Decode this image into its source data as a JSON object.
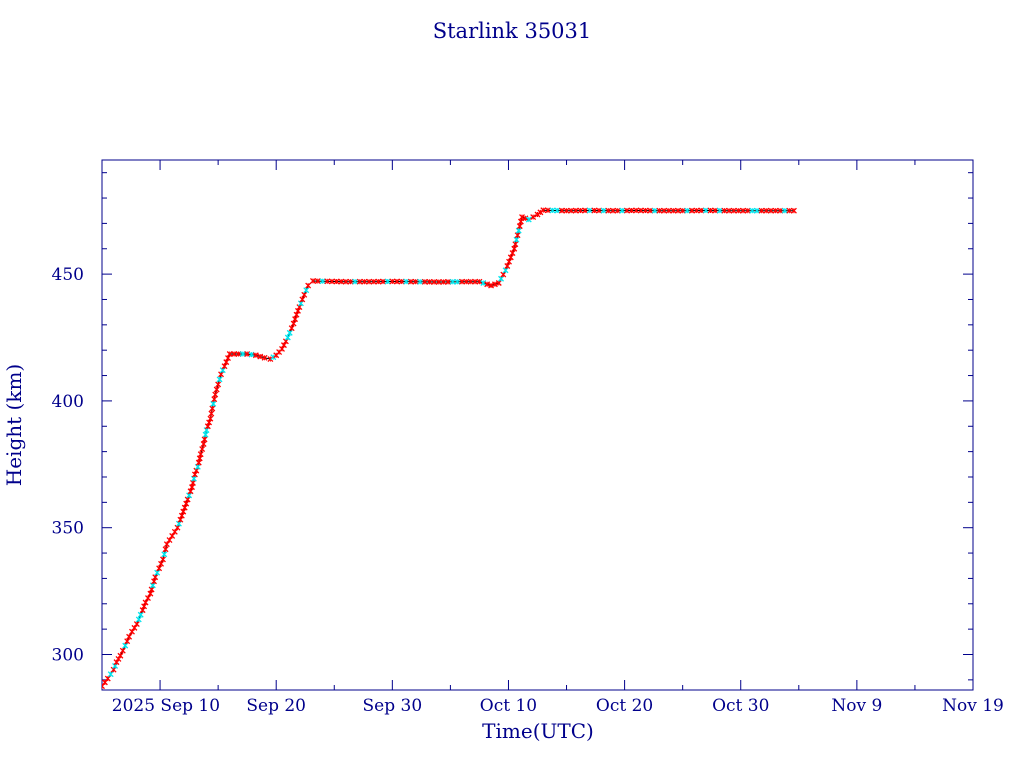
{
  "chart_data": {
    "type": "line",
    "title": "Starlink 35031",
    "xlabel": "Time(UTC)",
    "ylabel": "Height (km)",
    "x_axis": "date",
    "xlim": [
      "2025-09-05T00:00",
      "2025-11-19T00:00"
    ],
    "ylim": [
      286,
      495
    ],
    "x_ticks": [
      {
        "date": "2025-09-10",
        "label": "2025 Sep 10"
      },
      {
        "date": "2025-09-20",
        "label": "Sep 20"
      },
      {
        "date": "2025-09-30",
        "label": "Sep 30"
      },
      {
        "date": "2025-10-10",
        "label": "Oct 10"
      },
      {
        "date": "2025-10-20",
        "label": "Oct 20"
      },
      {
        "date": "2025-10-30",
        "label": "Oct 30"
      },
      {
        "date": "2025-11-09",
        "label": "Nov  9"
      },
      {
        "date": "2025-11-19",
        "label": "Nov 19"
      }
    ],
    "y_ticks": [
      300,
      350,
      400,
      450
    ],
    "grid": false,
    "colors": {
      "axis": "#00008b",
      "line": "#000000",
      "marker": "#ff0000",
      "marker_alt": "#00e5ee"
    },
    "series": [
      {
        "points": [
          [
            "2025-09-05T00:00",
            287.5
          ],
          [
            "2025-09-05T12:00",
            290.5
          ],
          [
            "2025-09-06T00:00",
            294.0
          ],
          [
            "2025-09-06T06:00",
            297.0
          ],
          [
            "2025-09-06T14:00",
            299.5
          ],
          [
            "2025-09-07T00:00",
            303.5
          ],
          [
            "2025-09-07T08:00",
            307.0
          ],
          [
            "2025-09-07T14:00",
            309.0
          ],
          [
            "2025-09-08T00:00",
            312.0
          ],
          [
            "2025-09-08T12:00",
            317.5
          ],
          [
            "2025-09-08T18:00",
            320.5
          ],
          [
            "2025-09-09T04:00",
            324.0
          ],
          [
            "2025-09-09T14:00",
            330.5
          ],
          [
            "2025-09-10T06:00",
            337.5
          ],
          [
            "2025-09-10T14:00",
            343.5
          ],
          [
            "2025-09-11T12:00",
            350.0
          ],
          [
            "2025-09-12T06:00",
            359.5
          ],
          [
            "2025-09-12T18:00",
            366.0
          ],
          [
            "2025-09-13T00:00",
            371.0
          ],
          [
            "2025-09-13T06:00",
            374.0
          ],
          [
            "2025-09-13T12:00",
            379.0
          ],
          [
            "2025-09-13T18:00",
            383.0
          ],
          [
            "2025-09-14T00:00",
            388.5
          ],
          [
            "2025-09-14T08:00",
            393.0
          ],
          [
            "2025-09-14T12:00",
            397.0
          ],
          [
            "2025-09-14T18:00",
            402.5
          ],
          [
            "2025-09-15T00:00",
            406.5
          ],
          [
            "2025-09-15T06:00",
            410.5
          ],
          [
            "2025-09-16T00:00",
            418.5
          ],
          [
            "2025-09-16T18:00",
            418.5
          ],
          [
            "2025-09-17T12:00",
            418.5
          ],
          [
            "2025-09-18T06:00",
            418.0
          ],
          [
            "2025-09-19T00:00",
            417.0
          ],
          [
            "2025-09-19T12:00",
            416.5
          ],
          [
            "2025-09-20T00:00",
            418.0
          ],
          [
            "2025-09-20T12:00",
            420.5
          ],
          [
            "2025-09-21T00:00",
            425.0
          ],
          [
            "2025-09-21T12:00",
            430.5
          ],
          [
            "2025-09-21T18:00",
            434.0
          ],
          [
            "2025-09-22T06:00",
            440.0
          ],
          [
            "2025-09-22T18:00",
            445.5
          ],
          [
            "2025-09-23T04:00",
            447.3
          ],
          [
            "2025-09-24T00:00",
            447.2
          ],
          [
            "2025-09-26T00:00",
            447.0
          ],
          [
            "2025-09-28T00:00",
            447.0
          ],
          [
            "2025-09-30T00:00",
            447.1
          ],
          [
            "2025-10-02T00:00",
            447.0
          ],
          [
            "2025-10-04T00:00",
            446.9
          ],
          [
            "2025-10-06T00:00",
            447.0
          ],
          [
            "2025-10-07T12:00",
            447.0
          ],
          [
            "2025-10-08T12:00",
            445.5
          ],
          [
            "2025-10-09T04:00",
            446.5
          ],
          [
            "2025-10-09T18:00",
            451.5
          ],
          [
            "2025-10-10T12:00",
            460.0
          ],
          [
            "2025-10-11T04:00",
            472.5
          ],
          [
            "2025-10-11T18:00",
            471.5
          ],
          [
            "2025-10-12T12:00",
            473.5
          ],
          [
            "2025-10-13T00:00",
            475.2
          ],
          [
            "2025-10-15T00:00",
            475.0
          ],
          [
            "2025-10-17T00:00",
            475.1
          ],
          [
            "2025-10-19T00:00",
            475.0
          ],
          [
            "2025-10-21T00:00",
            475.1
          ],
          [
            "2025-10-23T00:00",
            475.0
          ],
          [
            "2025-10-25T00:00",
            475.0
          ],
          [
            "2025-10-27T00:00",
            475.1
          ],
          [
            "2025-10-29T00:00",
            475.0
          ],
          [
            "2025-10-31T00:00",
            475.0
          ],
          [
            "2025-11-02T00:00",
            475.0
          ],
          [
            "2025-11-03T14:00",
            475.0
          ]
        ]
      }
    ]
  }
}
